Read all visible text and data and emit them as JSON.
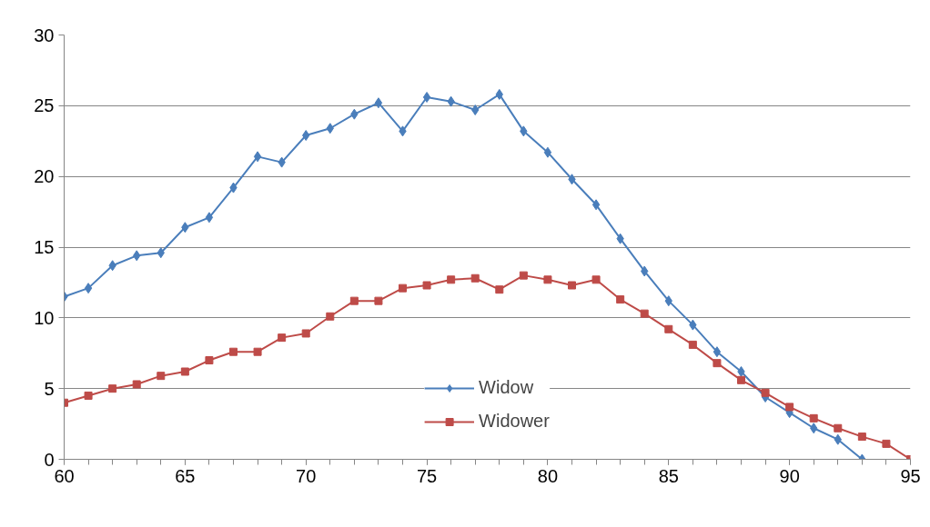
{
  "chart_data": {
    "type": "line",
    "xlim": [
      60,
      95
    ],
    "xticks": [
      60,
      65,
      70,
      75,
      80,
      85,
      90,
      95
    ],
    "ylim": [
      0,
      30
    ],
    "yticks": [
      0,
      5,
      10,
      15,
      20,
      25,
      30
    ],
    "grid": "y",
    "legend": "bottom",
    "line_style": "solid",
    "series": [
      {
        "name": "Widow",
        "color": "#4a7ebb",
        "marker": "diamond",
        "x": [
          60,
          61,
          62,
          63,
          64,
          65,
          66,
          67,
          68,
          69,
          70,
          71,
          72,
          73,
          74,
          75,
          76,
          77,
          78,
          79,
          80,
          81,
          82,
          83,
          84,
          85,
          86,
          87,
          88,
          89,
          90,
          91,
          92,
          93
        ],
        "values": [
          11.5,
          12.1,
          13.7,
          14.4,
          14.6,
          16.4,
          17.1,
          19.2,
          21.4,
          21.0,
          22.9,
          23.4,
          24.4,
          25.2,
          23.2,
          25.6,
          25.3,
          24.7,
          25.8,
          23.2,
          21.7,
          19.8,
          18.0,
          15.6,
          13.3,
          11.2,
          9.5,
          7.6,
          6.2,
          4.4,
          3.3,
          2.2,
          1.4,
          0
        ]
      },
      {
        "name": "Widower",
        "color": "#be4b48",
        "marker": "square",
        "x": [
          60,
          61,
          62,
          63,
          64,
          65,
          66,
          67,
          68,
          69,
          70,
          71,
          72,
          73,
          74,
          75,
          76,
          77,
          78,
          79,
          80,
          81,
          82,
          83,
          84,
          85,
          86,
          87,
          88,
          89,
          90,
          91,
          92,
          93,
          94,
          95
        ],
        "values": [
          4.0,
          4.5,
          5.0,
          5.3,
          5.9,
          6.2,
          7.0,
          7.6,
          7.6,
          8.6,
          8.9,
          10.1,
          11.2,
          11.2,
          12.1,
          12.3,
          12.7,
          12.8,
          12.0,
          13.0,
          12.7,
          12.3,
          12.7,
          11.3,
          10.3,
          9.2,
          8.1,
          6.8,
          5.6,
          4.7,
          3.7,
          2.9,
          2.2,
          1.6,
          1.1,
          0
        ]
      }
    ]
  }
}
